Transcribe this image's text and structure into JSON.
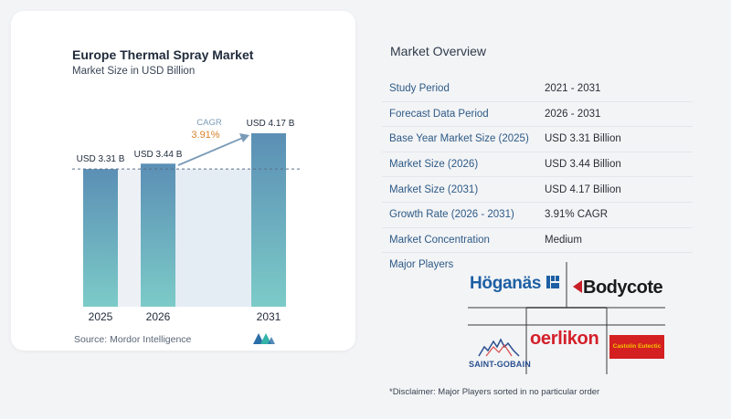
{
  "chart_data": {
    "type": "bar",
    "title": "Europe Thermal Spray Market",
    "subtitle": "Market Size in USD Billion",
    "categories": [
      "2025",
      "2026",
      "2031"
    ],
    "values": [
      3.31,
      3.44,
      4.17
    ],
    "value_labels": [
      "USD 3.31 B",
      "USD 3.44 B",
      "USD 4.17 B"
    ],
    "cagr_label": "CAGR",
    "cagr_value": "3.91%",
    "xlabel": "",
    "ylabel": "",
    "ylim": [
      0,
      4.17
    ],
    "grid": false,
    "bar_color_top": "#5b8fb5",
    "bar_color_bottom": "#7ccbc8"
  },
  "source": "Source: Mordor Intelligence",
  "overview": {
    "title": "Market Overview",
    "rows": [
      {
        "label": "Study Period",
        "value": "2021 - 2031"
      },
      {
        "label": "Forecast Data Period",
        "value": "2026 - 2031"
      },
      {
        "label": "Base Year Market Size (2025)",
        "value": "USD 3.31 Billion"
      },
      {
        "label": "Market Size (2026)",
        "value": "USD 3.44 Billion"
      },
      {
        "label": "Market Size (2031)",
        "value": "USD 4.17 Billion"
      },
      {
        "label": "Growth Rate (2026 - 2031)",
        "value": "3.91% CAGR"
      },
      {
        "label": "Market Concentration",
        "value": "Medium"
      }
    ]
  },
  "players": {
    "label": "Major Players",
    "logos": {
      "hoganas": "Höganäs",
      "bodycote": "Bodycote",
      "oerlikon": "oerlikon",
      "saint_gobain": "SAINT-GOBAIN",
      "castolin": "Castolin Eutectic"
    }
  },
  "disclaimer": "*Disclaimer: Major Players sorted in no particular order"
}
